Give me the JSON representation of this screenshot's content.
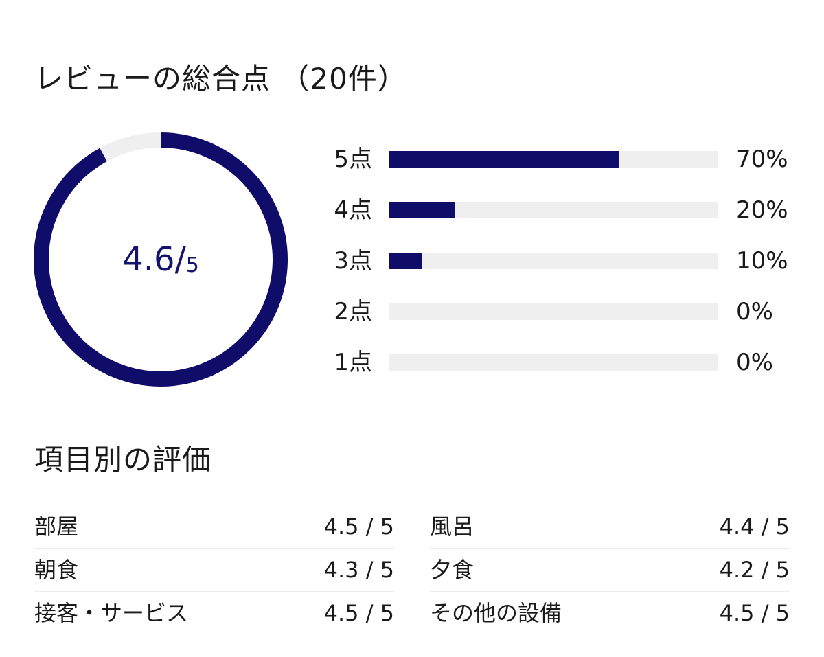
{
  "header": {
    "title": "レビューの総合点 （20件）"
  },
  "overall": {
    "score_text": "4.6/",
    "max_text": "5",
    "score_value": 4.6,
    "max_value": 5,
    "ring_color": "#0f0c6a",
    "track_color": "#efefef"
  },
  "distribution": [
    {
      "label": "5点",
      "percent_text": "70%",
      "percent": 70
    },
    {
      "label": "4点",
      "percent_text": "20%",
      "percent": 20
    },
    {
      "label": "3点",
      "percent_text": "10%",
      "percent": 10
    },
    {
      "label": "2点",
      "percent_text": "0%",
      "percent": 0
    },
    {
      "label": "1点",
      "percent_text": "0%",
      "percent": 0
    }
  ],
  "categories": {
    "title": "項目別の評価",
    "left": [
      {
        "name": "部屋",
        "score": "4.5 / 5"
      },
      {
        "name": "朝食",
        "score": "4.3 / 5"
      },
      {
        "name": "接客・サービス",
        "score": "4.5 / 5"
      }
    ],
    "right": [
      {
        "name": "風呂",
        "score": "4.4 / 5"
      },
      {
        "name": "夕食",
        "score": "4.2 / 5"
      },
      {
        "name": "その他の設備",
        "score": "4.5 / 5"
      }
    ]
  }
}
